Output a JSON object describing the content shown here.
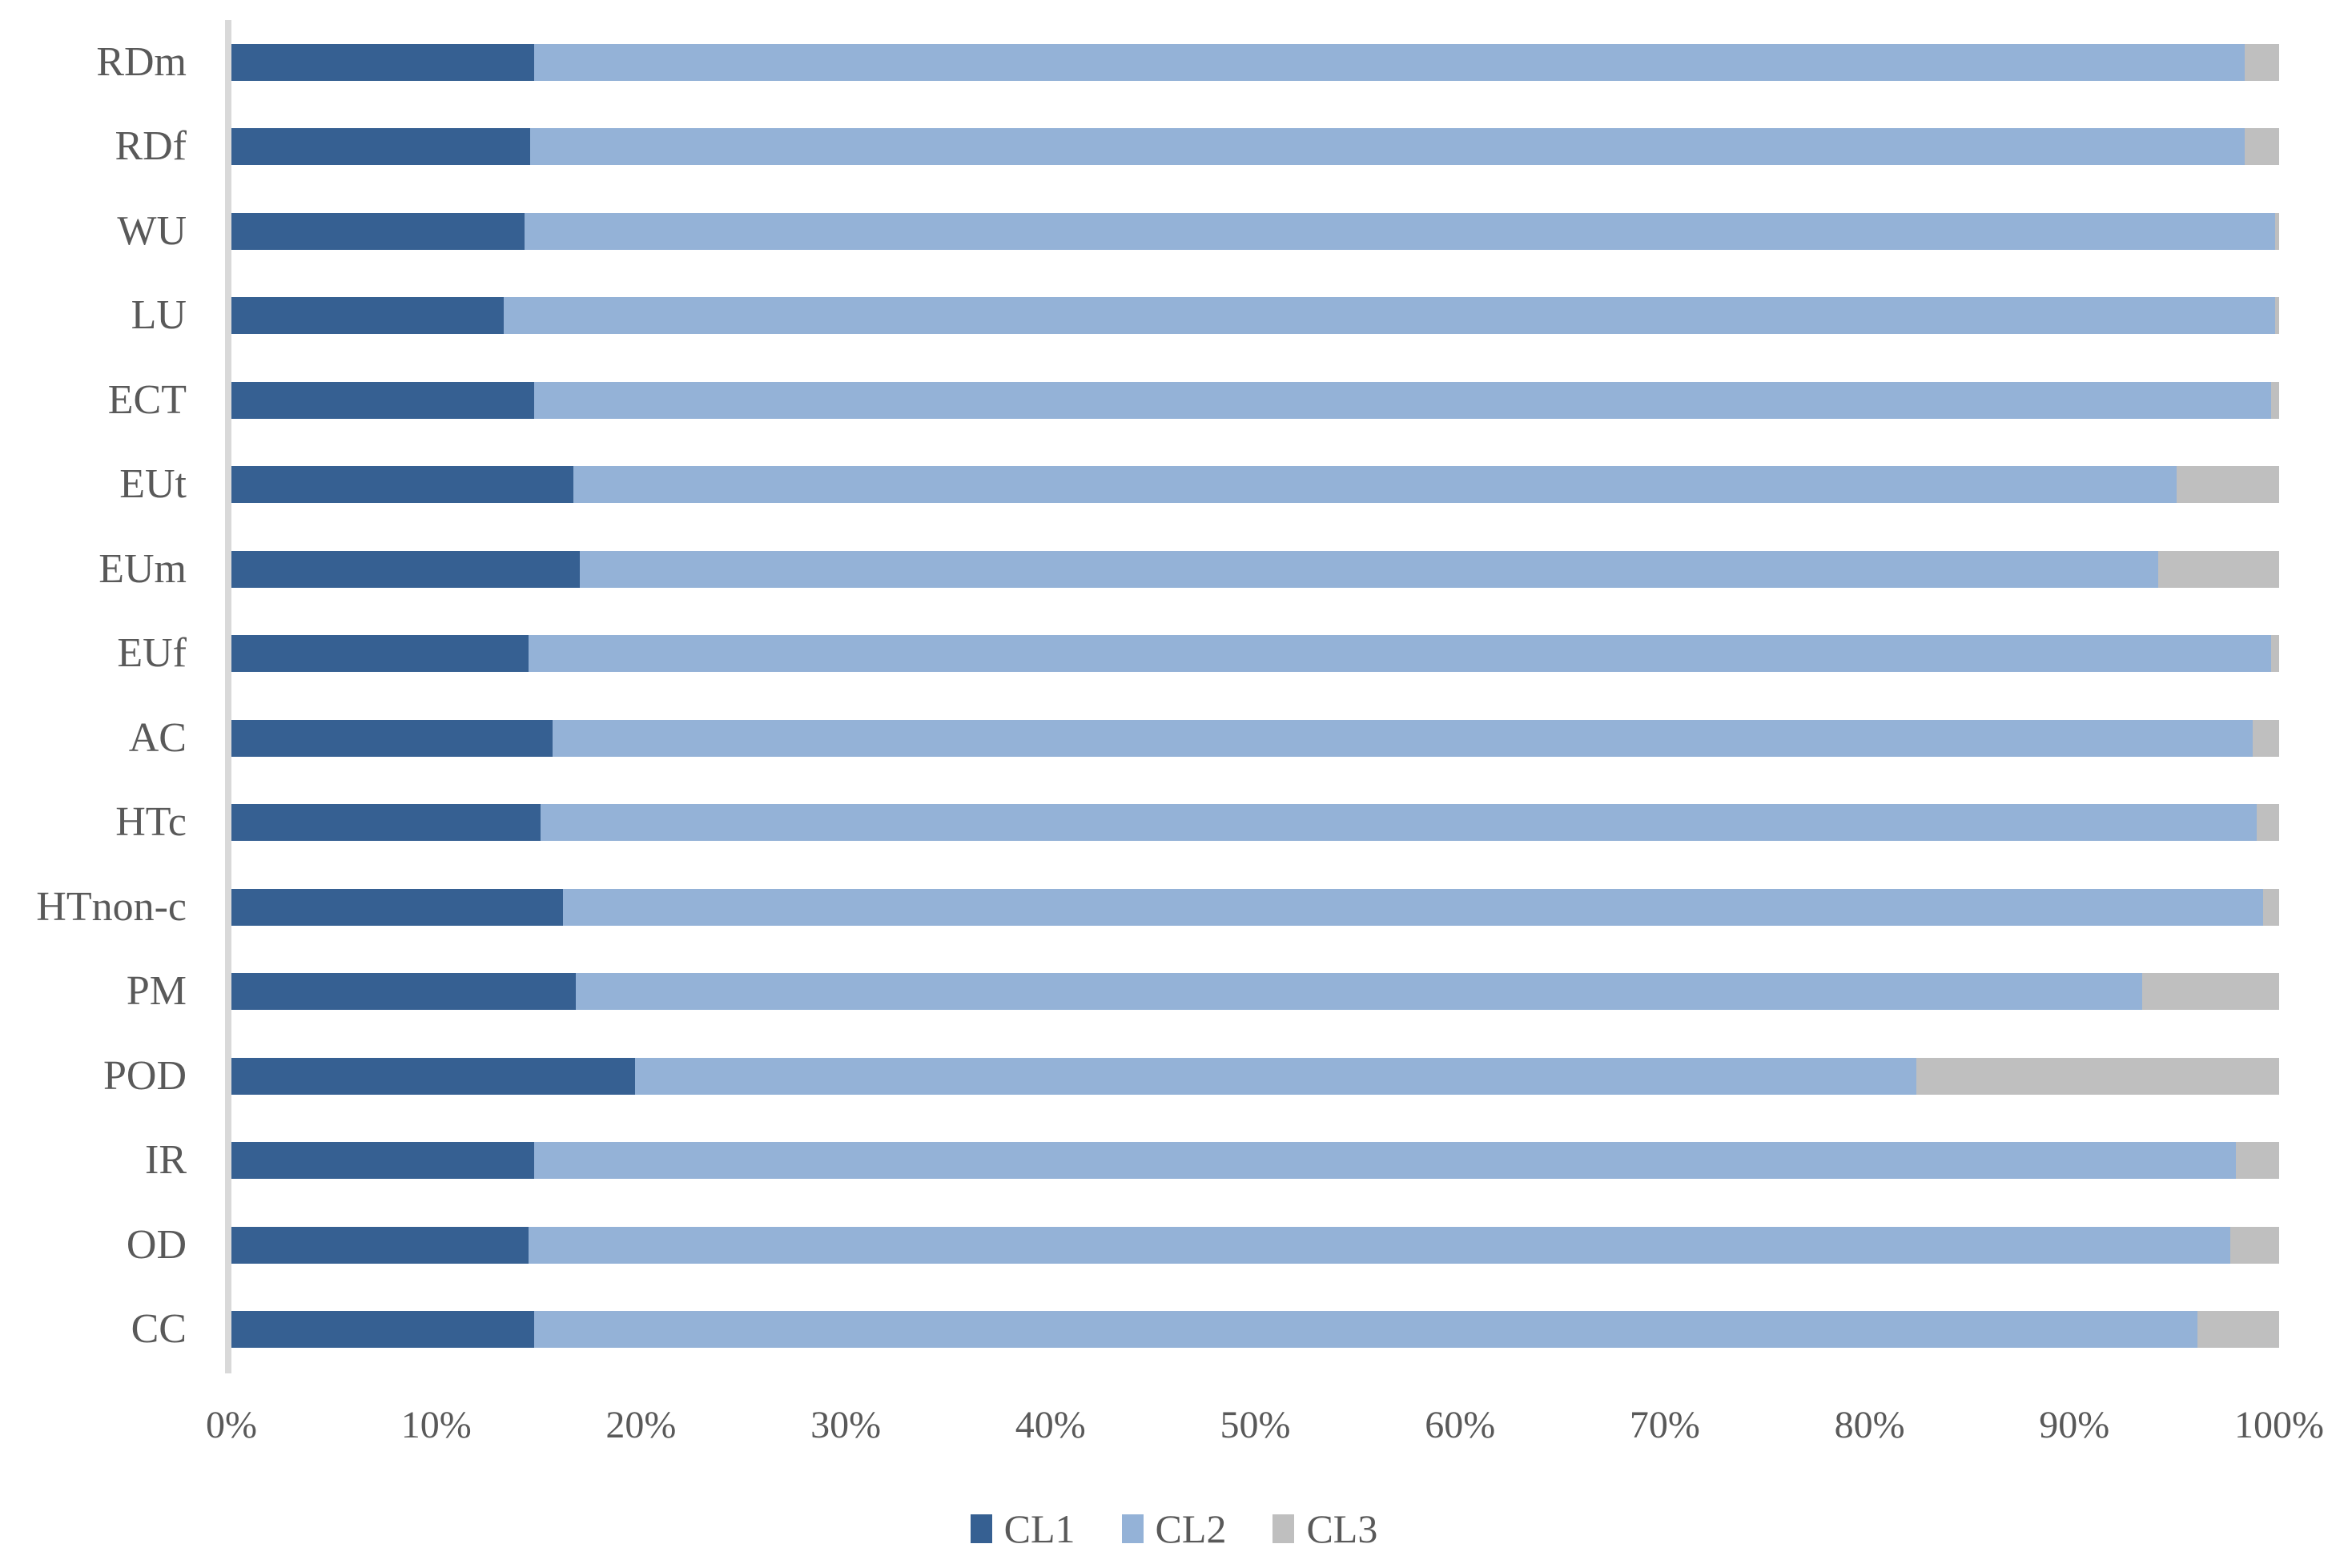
{
  "chart_data": {
    "type": "bar",
    "orientation": "horizontal",
    "stacked": true,
    "units": "percent",
    "title": "",
    "xlabel": "",
    "ylabel": "",
    "grid": false,
    "legend_position": "bottom",
    "categories": [
      "RDm",
      "RDf",
      "WU",
      "LU",
      "ECT",
      "EUt",
      "EUm",
      "EUf",
      "AC",
      "HTc",
      "HTnon-c",
      "PM",
      "POD",
      "IR",
      "OD",
      "CC"
    ],
    "series": [
      {
        "name": "CL1",
        "color": "#366092",
        "values": [
          14.8,
          14.6,
          14.3,
          13.3,
          14.8,
          16.7,
          17.0,
          14.5,
          15.7,
          15.1,
          16.2,
          16.8,
          19.7,
          14.8,
          14.5,
          14.8
        ]
      },
      {
        "name": "CL2",
        "color": "#94B2D7",
        "values": [
          83.5,
          83.7,
          85.5,
          86.5,
          84.8,
          78.3,
          77.1,
          85.1,
          83.0,
          83.8,
          83.0,
          76.5,
          62.6,
          83.1,
          83.1,
          81.2
        ]
      },
      {
        "name": "CL3",
        "color": "#BFBFBF",
        "values": [
          1.7,
          1.7,
          0.2,
          0.2,
          0.4,
          5.0,
          5.9,
          0.4,
          1.3,
          1.1,
          0.8,
          6.7,
          17.7,
          2.1,
          2.4,
          4.0
        ]
      }
    ],
    "x_axis": {
      "min": 0,
      "max": 100,
      "tick_step": 10,
      "tick_labels": [
        "0%",
        "10%",
        "20%",
        "30%",
        "40%",
        "50%",
        "60%",
        "70%",
        "80%",
        "90%",
        "100%"
      ]
    },
    "legend": [
      "CL1",
      "CL2",
      "CL3"
    ],
    "style": {
      "axis_line_color": "#D9D9D9",
      "text_color": "#595959",
      "background": "#FFFFFF"
    }
  }
}
